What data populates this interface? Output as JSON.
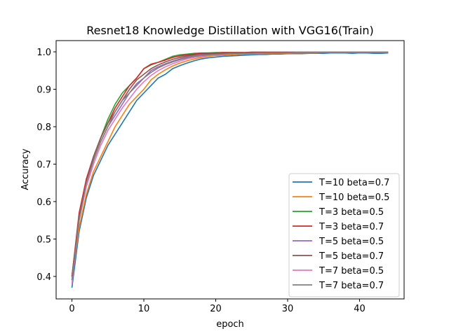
{
  "chart_data": {
    "type": "line",
    "title": "Resnet18 Knowledge Distillation with VGG16(Train)",
    "xlabel": "epoch",
    "ylabel": "Accuracy",
    "xlim": [
      -2.2,
      46.2
    ],
    "ylim": [
      0.34,
      1.03
    ],
    "xticks": [
      0,
      10,
      20,
      30,
      40
    ],
    "yticks": [
      0.4,
      0.5,
      0.6,
      0.7,
      0.8,
      0.9,
      1.0
    ],
    "xtick_labels": [
      "0",
      "10",
      "20",
      "30",
      "40"
    ],
    "ytick_labels": [
      "0.4",
      "0.5",
      "0.6",
      "0.7",
      "0.8",
      "0.9",
      "1.0"
    ],
    "grid": false,
    "legend_position": "lower-right",
    "x": [
      0,
      1,
      2,
      3,
      4,
      5,
      6,
      7,
      8,
      9,
      10,
      11,
      12,
      13,
      14,
      15,
      16,
      17,
      18,
      19,
      20,
      21,
      22,
      23,
      24,
      25,
      26,
      27,
      28,
      29,
      30,
      31,
      32,
      33,
      34,
      35,
      36,
      37,
      38,
      39,
      40,
      41,
      42,
      43,
      44
    ],
    "series": [
      {
        "name": "T=10 beta=0.7",
        "color": "#1f77b4",
        "values": [
          0.37,
          0.52,
          0.61,
          0.67,
          0.71,
          0.75,
          0.78,
          0.81,
          0.84,
          0.87,
          0.89,
          0.91,
          0.93,
          0.94,
          0.955,
          0.963,
          0.97,
          0.976,
          0.981,
          0.984,
          0.986,
          0.988,
          0.989,
          0.99,
          0.991,
          0.992,
          0.993,
          0.993,
          0.994,
          0.994,
          0.995,
          0.995,
          0.995,
          0.996,
          0.996,
          0.996,
          0.997,
          0.997,
          0.997,
          0.996,
          0.997,
          0.997,
          0.996,
          0.996,
          0.997
        ]
      },
      {
        "name": "T=10 beta=0.5",
        "color": "#ff7f0e",
        "values": [
          0.39,
          0.53,
          0.62,
          0.68,
          0.72,
          0.76,
          0.8,
          0.83,
          0.86,
          0.88,
          0.9,
          0.925,
          0.94,
          0.952,
          0.962,
          0.97,
          0.976,
          0.981,
          0.985,
          0.988,
          0.99,
          0.991,
          0.992,
          0.993,
          0.994,
          0.994,
          0.995,
          0.995,
          0.996,
          0.996,
          0.996,
          0.997,
          0.997,
          0.997,
          0.997,
          0.998,
          0.998,
          0.998,
          0.998,
          0.998,
          0.998,
          0.998,
          0.998,
          0.998,
          0.998
        ]
      },
      {
        "name": "T=3 beta=0.5",
        "color": "#2ca02c",
        "values": [
          0.4,
          0.56,
          0.66,
          0.72,
          0.77,
          0.82,
          0.86,
          0.89,
          0.91,
          0.93,
          0.955,
          0.965,
          0.972,
          0.98,
          0.988,
          0.992,
          0.994,
          0.996,
          0.997,
          0.997,
          0.998,
          0.998,
          0.998,
          0.998,
          0.998,
          0.999,
          0.999,
          0.999,
          0.999,
          0.999,
          0.999,
          0.999,
          0.999,
          0.999,
          0.999,
          0.999,
          0.999,
          0.999,
          0.999,
          0.999,
          0.999,
          0.999,
          0.999,
          0.999,
          0.999
        ]
      },
      {
        "name": "T=3 beta=0.7",
        "color": "#d62728",
        "values": [
          0.4,
          0.57,
          0.66,
          0.72,
          0.77,
          0.81,
          0.85,
          0.88,
          0.91,
          0.93,
          0.955,
          0.967,
          0.972,
          0.978,
          0.985,
          0.989,
          0.992,
          0.994,
          0.996,
          0.997,
          0.997,
          0.998,
          0.998,
          0.998,
          0.998,
          0.999,
          0.999,
          0.999,
          0.999,
          0.999,
          0.999,
          0.999,
          0.999,
          0.999,
          0.999,
          0.999,
          0.999,
          0.999,
          0.999,
          0.999,
          0.999,
          0.999,
          0.999,
          0.999,
          0.999
        ]
      },
      {
        "name": "T=5 beta=0.5",
        "color": "#9467bd",
        "values": [
          0.39,
          0.56,
          0.65,
          0.71,
          0.76,
          0.8,
          0.83,
          0.86,
          0.89,
          0.915,
          0.93,
          0.95,
          0.96,
          0.968,
          0.975,
          0.981,
          0.986,
          0.989,
          0.991,
          0.993,
          0.994,
          0.995,
          0.995,
          0.996,
          0.996,
          0.997,
          0.997,
          0.997,
          0.997,
          0.998,
          0.998,
          0.998,
          0.998,
          0.998,
          0.998,
          0.998,
          0.998,
          0.998,
          0.998,
          0.998,
          0.998,
          0.998,
          0.998,
          0.998,
          0.998
        ]
      },
      {
        "name": "T=5 beta=0.7",
        "color": "#8c564b",
        "values": [
          0.4,
          0.56,
          0.65,
          0.72,
          0.77,
          0.81,
          0.84,
          0.87,
          0.9,
          0.925,
          0.94,
          0.955,
          0.965,
          0.973,
          0.98,
          0.985,
          0.989,
          0.992,
          0.994,
          0.995,
          0.996,
          0.996,
          0.997,
          0.997,
          0.997,
          0.998,
          0.998,
          0.998,
          0.998,
          0.998,
          0.998,
          0.998,
          0.998,
          0.998,
          0.998,
          0.998,
          0.998,
          0.998,
          0.998,
          0.998,
          0.998,
          0.998,
          0.998,
          0.998,
          0.998
        ]
      },
      {
        "name": "T=7 beta=0.5",
        "color": "#e377c2",
        "values": [
          0.38,
          0.55,
          0.64,
          0.7,
          0.75,
          0.79,
          0.82,
          0.85,
          0.875,
          0.9,
          0.92,
          0.937,
          0.95,
          0.96,
          0.968,
          0.975,
          0.981,
          0.985,
          0.988,
          0.99,
          0.992,
          0.993,
          0.994,
          0.995,
          0.995,
          0.996,
          0.996,
          0.997,
          0.997,
          0.997,
          0.997,
          0.998,
          0.998,
          0.998,
          0.998,
          0.998,
          0.998,
          0.998,
          0.998,
          0.998,
          0.998,
          0.998,
          0.998,
          0.998,
          0.998
        ]
      },
      {
        "name": "T=7 beta=0.7",
        "color": "#7f7f7f",
        "values": [
          0.39,
          0.55,
          0.65,
          0.71,
          0.76,
          0.8,
          0.84,
          0.87,
          0.89,
          0.91,
          0.93,
          0.945,
          0.957,
          0.966,
          0.973,
          0.979,
          0.984,
          0.988,
          0.99,
          0.992,
          0.993,
          0.994,
          0.995,
          0.995,
          0.996,
          0.996,
          0.997,
          0.997,
          0.997,
          0.997,
          0.997,
          0.998,
          0.998,
          0.998,
          0.998,
          0.998,
          0.998,
          0.998,
          0.998,
          0.998,
          0.998,
          0.998,
          0.998,
          0.998,
          0.998
        ]
      }
    ]
  }
}
